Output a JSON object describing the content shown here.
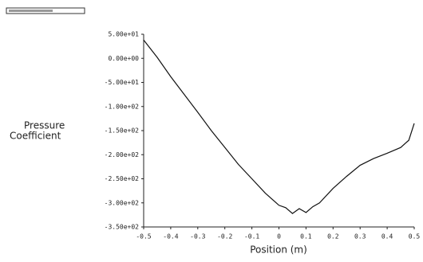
{
  "chart_data": {
    "type": "line",
    "ylabel_lines": [
      "Pressure",
      "Coefficient"
    ],
    "xlabel": "Position (m)",
    "x": [
      -0.5,
      -0.45,
      -0.4,
      -0.35,
      -0.3,
      -0.25,
      -0.2,
      -0.15,
      -0.1,
      -0.05,
      0,
      0.025,
      0.05,
      0.075,
      0.1,
      0.125,
      0.15,
      0.2,
      0.25,
      0.3,
      0.35,
      0.4,
      0.45,
      0.48,
      0.5
    ],
    "series": [
      {
        "color": "#111111",
        "values": [
          38,
          2,
          -38,
          -75,
          -112,
          -150,
          -185,
          -220,
          -250,
          -280,
          -305,
          -310,
          -322,
          -312,
          -320,
          -308,
          -300,
          -270,
          -245,
          -222,
          -208,
          -197,
          -185,
          -170,
          -135
        ]
      }
    ],
    "xlim": [
      -0.5,
      0.5
    ],
    "xticks": [
      -0.5,
      -0.4,
      -0.3,
      -0.2,
      -0.1,
      0,
      0.1,
      0.2,
      0.3,
      0.4,
      0.5
    ],
    "ylim": [
      -350,
      50
    ],
    "yticks": [
      {
        "value": 50,
        "label": "5.00e+01"
      },
      {
        "value": 0,
        "label": "0.00e+00"
      },
      {
        "value": -50,
        "label": "-5.00e+01"
      },
      {
        "value": -100,
        "label": "-1.00e+02"
      },
      {
        "value": -150,
        "label": "-1.50e+02"
      },
      {
        "value": -200,
        "label": "-2.00e+02"
      },
      {
        "value": -250,
        "label": "-2.50e+02"
      },
      {
        "value": -300,
        "label": "-3.00e+02"
      },
      {
        "value": -350,
        "label": "-3.50e+02"
      }
    ]
  }
}
